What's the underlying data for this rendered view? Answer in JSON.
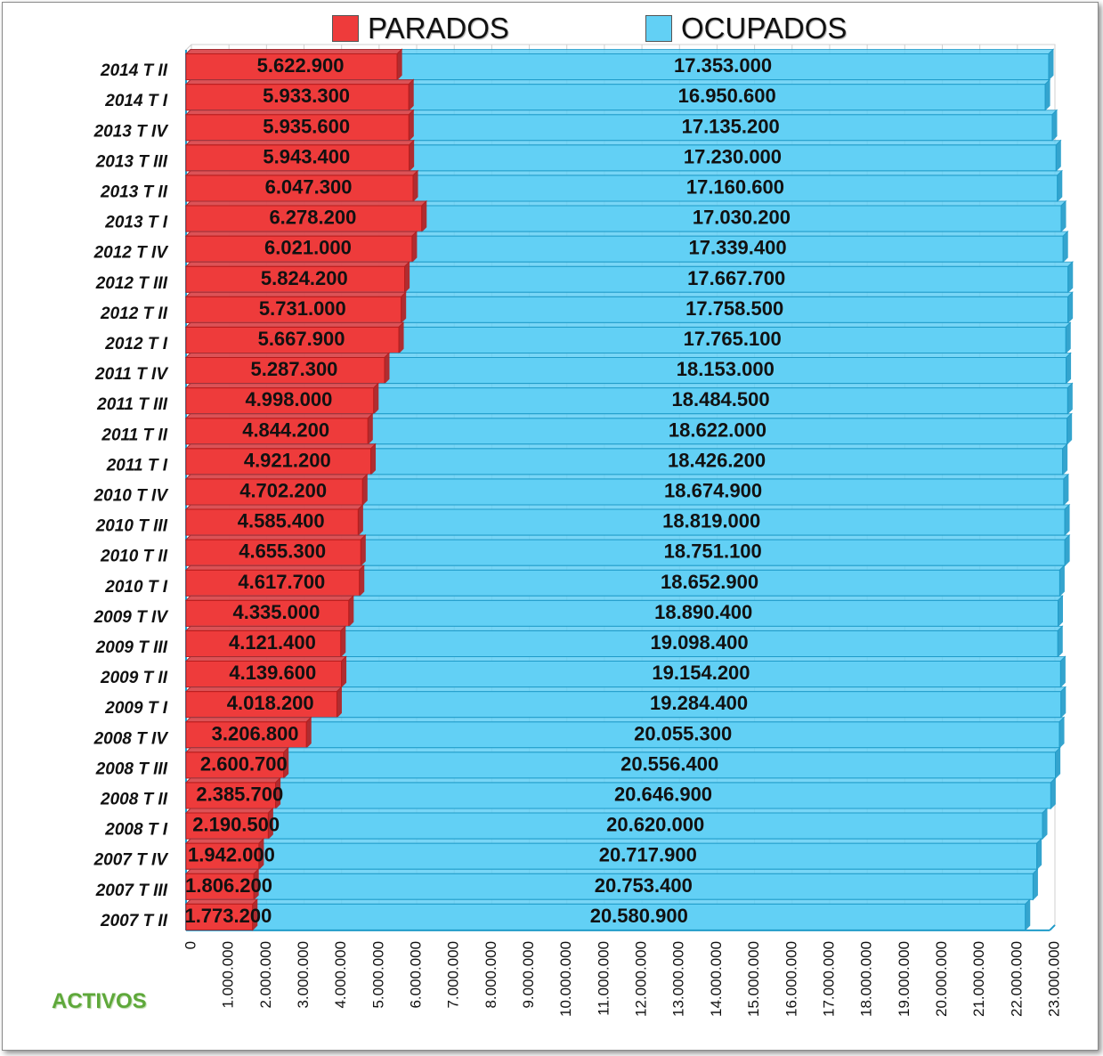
{
  "chart_data": {
    "type": "bar",
    "orientation": "horizontal",
    "stacked": true,
    "legend_position": "top",
    "grid": true,
    "xlim": [
      0,
      23000000
    ],
    "x_ticks": [
      "0",
      "1.000.000",
      "2.000.000",
      "3.000.000",
      "4.000.000",
      "5.000.000",
      "6.000.000",
      "7.000.000",
      "8.000.000",
      "9.000.000",
      "10.000.000",
      "11.000.000",
      "12.000.000",
      "13.000.000",
      "14.000.000",
      "15.000.000",
      "16.000.000",
      "17.000.000",
      "18.000.000",
      "19.000.000",
      "20.000.000",
      "21.000.000",
      "22.000.000",
      "23.000.000"
    ],
    "corner_label": "ACTIVOS",
    "categories": [
      "2014 T II",
      "2014 T I",
      "2013 T IV",
      "2013 T III",
      "2013 T II",
      "2013 T I",
      "2012 T IV",
      "2012 T III",
      "2012 T II",
      "2012 T I",
      "2011 T IV",
      "2011 T III",
      "2011 T II",
      "2011 T I",
      "2010 T IV",
      "2010 T III",
      "2010 T II",
      "2010 T I",
      "2009 T IV",
      "2009 T III",
      "2009 T II",
      "2009 T I",
      "2008 T IV",
      "2008 T III",
      "2008 T II",
      "2008 T I",
      "2007 T IV",
      "2007 T III",
      "2007 T II"
    ],
    "series": [
      {
        "name": "PARADOS",
        "color": "#ee3b3b",
        "edge_color": "#b81c1c",
        "values": [
          5622900,
          5933300,
          5935600,
          5943400,
          6047300,
          6278200,
          6021000,
          5824200,
          5731000,
          5667900,
          5287300,
          4998000,
          4844200,
          4921200,
          4702200,
          4585400,
          4655300,
          4617700,
          4335000,
          4121400,
          4139600,
          4018200,
          3206800,
          2600700,
          2385700,
          2190500,
          1942000,
          1806200,
          1773200
        ],
        "labels": [
          "5.622.900",
          "5.933.300",
          "5.935.600",
          "5.943.400",
          "6.047.300",
          "6.278.200",
          "6.021.000",
          "5.824.200",
          "5.731.000",
          "5.667.900",
          "5.287.300",
          "4.998.000",
          "4.844.200",
          "4.921.200",
          "4.702.200",
          "4.585.400",
          "4.655.300",
          "4.617.700",
          "4.335.000",
          "4.121.400",
          "4.139.600",
          "4.018.200",
          "3.206.800",
          "2.600.700",
          "2.385.700",
          "2.190.500",
          "1.942.000",
          "1.806.200",
          "1.773.200"
        ]
      },
      {
        "name": "OCUPADOS",
        "color": "#62d0f5",
        "edge_color": "#1f9bc9",
        "values": [
          17353000,
          16950600,
          17135200,
          17230000,
          17160600,
          17030200,
          17339400,
          17667700,
          17758500,
          17765100,
          18153000,
          18484500,
          18622000,
          18426200,
          18674900,
          18819000,
          18751100,
          18652900,
          18890400,
          19098400,
          19154200,
          19284400,
          20055300,
          20556400,
          20646900,
          20620000,
          20717900,
          20753400,
          20580900
        ],
        "labels": [
          "17.353.000",
          "16.950.600",
          "17.135.200",
          "17.230.000",
          "17.160.600",
          "17.030.200",
          "17.339.400",
          "17.667.700",
          "17.758.500",
          "17.765.100",
          "18.153.000",
          "18.484.500",
          "18.622.000",
          "18.426.200",
          "18.674.900",
          "18.819.000",
          "18.751.100",
          "18.652.900",
          "18.890.400",
          "19.098.400",
          "19.154.200",
          "19.284.400",
          "20.055.300",
          "20.556.400",
          "20.646.900",
          "20.620.000",
          "20.717.900",
          "20.753.400",
          "20.580.900"
        ]
      }
    ]
  }
}
